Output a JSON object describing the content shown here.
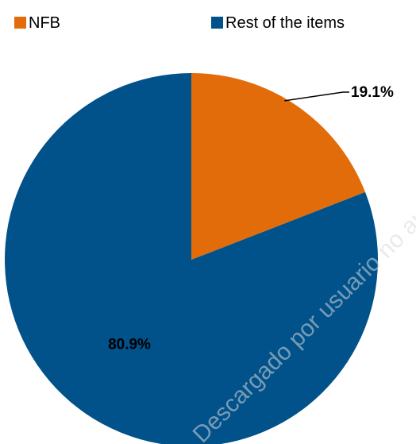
{
  "chart_data": {
    "type": "pie",
    "title": "",
    "legend_position": "top",
    "slices": [
      {
        "name": "NFB",
        "value": 19.1,
        "label": "19.1%",
        "color": "#E36C0A"
      },
      {
        "name": "Rest of the items",
        "value": 80.9,
        "label": "80.9%",
        "color": "#01518A"
      }
    ]
  },
  "watermark": "Descargado por usuario no autorizado"
}
